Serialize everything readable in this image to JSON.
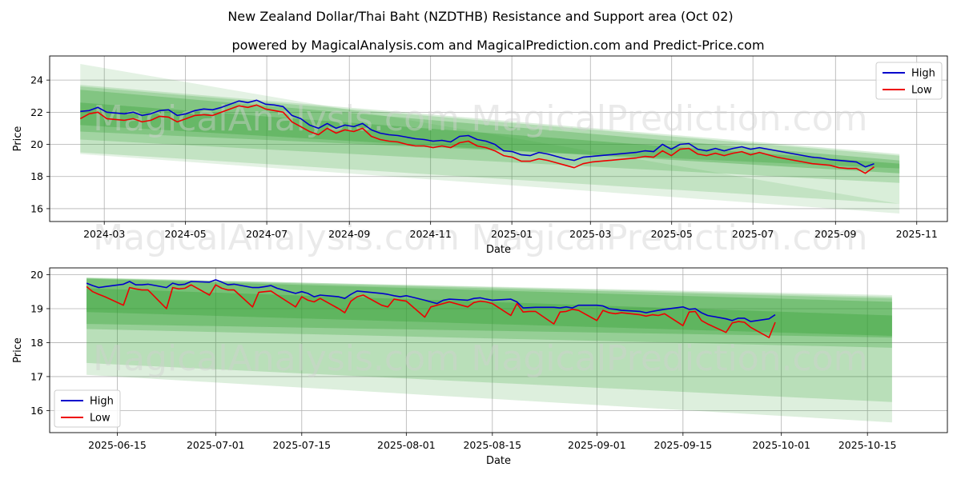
{
  "title": "New Zealand Dollar/Thai Baht (NZDTHB) Resistance and Support area (Oct 02)",
  "subtitle": "powered by MagicalAnalysis.com and MagicalPrediction.com and Predict-Price.com",
  "watermarks": [
    "MagicalAnalysis.com",
    "MagicalPrediction.com"
  ],
  "colors": {
    "high": "#0000cc",
    "low": "#ee0000",
    "band": "#2e9e2e",
    "grid": "#b0b0b0",
    "watermark": "#d0d0d0"
  },
  "chart_data": [
    {
      "type": "line",
      "name": "full-range",
      "xlabel": "Date",
      "ylabel": "Price",
      "x_range": [
        "2024-01-20",
        "2025-11-24"
      ],
      "ylim": [
        15.2,
        25.5
      ],
      "x_ticks": [
        "2024-03",
        "2024-05",
        "2024-07",
        "2024-09",
        "2024-11",
        "2025-01",
        "2025-03",
        "2025-05",
        "2025-07",
        "2025-09",
        "2025-11"
      ],
      "x_tick_dates": [
        "2024-03-01",
        "2024-05-01",
        "2024-07-01",
        "2024-09-01",
        "2024-11-01",
        "2025-01-01",
        "2025-03-01",
        "2025-05-01",
        "2025-07-01",
        "2025-09-01",
        "2025-11-01"
      ],
      "y_ticks": [
        "16",
        "18",
        "20",
        "22",
        "24"
      ],
      "y_tick_values": [
        16,
        18,
        20,
        22,
        24
      ],
      "legend": {
        "position": "top-right",
        "entries": [
          "High",
          "Low"
        ]
      },
      "bands_date_range": [
        "2024-02-12",
        "2025-10-19"
      ],
      "bands": [
        {
          "upper": [
            25.0,
            16.3
          ],
          "lower": [
            19.4,
            15.7
          ],
          "opacity": 0.13
        },
        {
          "upper": [
            23.7,
            19.4
          ],
          "lower": [
            19.5,
            16.3
          ],
          "opacity": 0.18
        },
        {
          "upper": [
            23.6,
            19.3
          ],
          "lower": [
            20.3,
            17.6
          ],
          "opacity": 0.22
        },
        {
          "upper": [
            23.4,
            19.0
          ],
          "lower": [
            20.8,
            18.5
          ],
          "opacity": 0.28
        },
        {
          "upper": [
            22.6,
            18.8
          ],
          "lower": [
            21.2,
            18.2
          ],
          "opacity": 0.32
        }
      ],
      "series_date_range": [
        "2024-02-12",
        "2025-09-30"
      ],
      "series": [
        {
          "name": "High",
          "values": [
            22.05,
            22.1,
            22.3,
            22.0,
            21.95,
            21.9,
            22.0,
            21.8,
            21.9,
            22.1,
            22.15,
            21.8,
            21.9,
            22.1,
            22.2,
            22.15,
            22.3,
            22.5,
            22.7,
            22.6,
            22.75,
            22.5,
            22.45,
            22.35,
            21.8,
            21.6,
            21.2,
            21.0,
            21.3,
            21.0,
            21.2,
            21.1,
            21.3,
            20.9,
            20.7,
            20.6,
            20.55,
            20.45,
            20.35,
            20.3,
            20.2,
            20.25,
            20.15,
            20.5,
            20.55,
            20.3,
            20.2,
            20.0,
            19.6,
            19.55,
            19.35,
            19.3,
            19.5,
            19.4,
            19.25,
            19.1,
            19.0,
            19.2,
            19.25,
            19.3,
            19.35,
            19.4,
            19.45,
            19.5,
            19.6,
            19.55,
            20.0,
            19.7,
            20.0,
            20.05,
            19.7,
            19.6,
            19.75,
            19.6,
            19.75,
            19.85,
            19.7,
            19.8,
            19.7,
            19.6,
            19.5,
            19.4,
            19.3,
            19.2,
            19.15,
            19.05,
            19.0,
            18.95,
            18.9,
            18.6,
            18.8
          ]
        },
        {
          "name": "Low",
          "values": [
            21.6,
            21.9,
            22.0,
            21.6,
            21.55,
            21.5,
            21.6,
            21.4,
            21.5,
            21.75,
            21.7,
            21.4,
            21.6,
            21.8,
            21.85,
            21.8,
            22.0,
            22.2,
            22.4,
            22.3,
            22.45,
            22.2,
            22.1,
            22.0,
            21.4,
            21.1,
            20.8,
            20.6,
            21.0,
            20.7,
            20.9,
            20.8,
            21.0,
            20.5,
            20.3,
            20.2,
            20.15,
            20.0,
            19.9,
            19.9,
            19.8,
            19.9,
            19.8,
            20.1,
            20.2,
            19.9,
            19.8,
            19.6,
            19.3,
            19.2,
            18.95,
            18.95,
            19.1,
            19.0,
            18.85,
            18.7,
            18.55,
            18.8,
            18.9,
            18.95,
            19.0,
            19.05,
            19.1,
            19.15,
            19.25,
            19.2,
            19.6,
            19.3,
            19.7,
            19.75,
            19.4,
            19.3,
            19.45,
            19.3,
            19.45,
            19.55,
            19.35,
            19.5,
            19.35,
            19.2,
            19.1,
            19.0,
            18.9,
            18.8,
            18.75,
            18.7,
            18.55,
            18.5,
            18.5,
            18.2,
            18.6
          ]
        }
      ]
    },
    {
      "type": "line",
      "name": "zoomed",
      "xlabel": "Date",
      "ylabel": "Price",
      "x_range": [
        "2025-06-04",
        "2025-10-28"
      ],
      "ylim": [
        15.35,
        20.2
      ],
      "x_ticks": [
        "2025-06-15",
        "2025-07-01",
        "2025-07-15",
        "2025-08-01",
        "2025-08-15",
        "2025-09-01",
        "2025-09-15",
        "2025-10-01",
        "2025-10-15"
      ],
      "x_tick_dates": [
        "2025-06-15",
        "2025-07-01",
        "2025-07-15",
        "2025-08-01",
        "2025-08-15",
        "2025-09-01",
        "2025-09-15",
        "2025-10-01",
        "2025-10-15"
      ],
      "y_ticks": [
        "16",
        "17",
        "18",
        "19",
        "20"
      ],
      "y_tick_values": [
        16,
        17,
        18,
        19,
        20
      ],
      "legend": {
        "position": "bottom-left",
        "entries": [
          "High",
          "Low"
        ]
      },
      "bands_date_range": [
        "2025-06-10",
        "2025-10-19"
      ],
      "bands": [
        {
          "upper": [
            19.9,
            19.4
          ],
          "lower": [
            17.05,
            15.65
          ],
          "opacity": 0.16
        },
        {
          "upper": [
            19.92,
            19.35
          ],
          "lower": [
            17.4,
            16.25
          ],
          "opacity": 0.2
        },
        {
          "upper": [
            19.9,
            19.3
          ],
          "lower": [
            18.4,
            17.85
          ],
          "opacity": 0.25
        },
        {
          "upper": [
            19.88,
            19.2
          ],
          "lower": [
            18.55,
            18.15
          ],
          "opacity": 0.3
        },
        {
          "upper": [
            19.6,
            18.8
          ],
          "lower": [
            18.9,
            18.2
          ],
          "opacity": 0.32
        }
      ],
      "series": [
        {
          "name": "High",
          "dates": [
            "2025-06-10",
            "2025-06-11",
            "2025-06-12",
            "2025-06-13",
            "2025-06-16",
            "2025-06-17",
            "2025-06-18",
            "2025-06-19",
            "2025-06-20",
            "2025-06-23",
            "2025-06-24",
            "2025-06-25",
            "2025-06-26",
            "2025-06-27",
            "2025-06-30",
            "2025-07-01",
            "2025-07-02",
            "2025-07-03",
            "2025-07-04",
            "2025-07-07",
            "2025-07-08",
            "2025-07-09",
            "2025-07-10",
            "2025-07-11",
            "2025-07-14",
            "2025-07-15",
            "2025-07-16",
            "2025-07-17",
            "2025-07-18",
            "2025-07-21",
            "2025-07-22",
            "2025-07-23",
            "2025-07-24",
            "2025-07-25",
            "2025-07-28",
            "2025-07-29",
            "2025-07-30",
            "2025-07-31",
            "2025-08-01",
            "2025-08-04",
            "2025-08-05",
            "2025-08-06",
            "2025-08-07",
            "2025-08-08",
            "2025-08-11",
            "2025-08-12",
            "2025-08-13",
            "2025-08-14",
            "2025-08-15",
            "2025-08-18",
            "2025-08-19",
            "2025-08-20",
            "2025-08-21",
            "2025-08-22",
            "2025-08-25",
            "2025-08-26",
            "2025-08-27",
            "2025-08-28",
            "2025-08-29",
            "2025-09-01",
            "2025-09-02",
            "2025-09-03",
            "2025-09-04",
            "2025-09-05",
            "2025-09-08",
            "2025-09-09",
            "2025-09-10",
            "2025-09-11",
            "2025-09-12",
            "2025-09-15",
            "2025-09-16",
            "2025-09-17",
            "2025-09-18",
            "2025-09-19",
            "2025-09-22",
            "2025-09-23",
            "2025-09-24",
            "2025-09-25",
            "2025-09-26",
            "2025-09-29",
            "2025-09-30"
          ],
          "values": [
            19.75,
            19.68,
            19.62,
            19.65,
            19.72,
            19.8,
            19.7,
            19.7,
            19.72,
            19.62,
            19.75,
            19.7,
            19.72,
            19.8,
            19.78,
            19.85,
            19.78,
            19.7,
            19.72,
            19.62,
            19.62,
            19.65,
            19.68,
            19.6,
            19.45,
            19.5,
            19.45,
            19.35,
            19.4,
            19.35,
            19.3,
            19.42,
            19.52,
            19.5,
            19.45,
            19.42,
            19.38,
            19.35,
            19.38,
            19.25,
            19.2,
            19.15,
            19.25,
            19.28,
            19.25,
            19.3,
            19.32,
            19.28,
            19.25,
            19.28,
            19.2,
            19.02,
            19.03,
            19.04,
            19.04,
            19.02,
            19.05,
            19.02,
            19.1,
            19.1,
            19.08,
            19.0,
            18.98,
            18.95,
            18.92,
            18.88,
            18.92,
            18.95,
            18.98,
            19.05,
            18.98,
            19.0,
            18.88,
            18.8,
            18.7,
            18.65,
            18.72,
            18.72,
            18.62,
            18.7,
            18.82
          ]
        },
        {
          "name": "Low",
          "dates": [
            "2025-06-10",
            "2025-06-11",
            "2025-06-12",
            "2025-06-13",
            "2025-06-16",
            "2025-06-17",
            "2025-06-18",
            "2025-06-19",
            "2025-06-20",
            "2025-06-23",
            "2025-06-24",
            "2025-06-25",
            "2025-06-26",
            "2025-06-27",
            "2025-06-30",
            "2025-07-01",
            "2025-07-02",
            "2025-07-03",
            "2025-07-04",
            "2025-07-07",
            "2025-07-08",
            "2025-07-09",
            "2025-07-10",
            "2025-07-11",
            "2025-07-14",
            "2025-07-15",
            "2025-07-16",
            "2025-07-17",
            "2025-07-18",
            "2025-07-21",
            "2025-07-22",
            "2025-07-23",
            "2025-07-24",
            "2025-07-25",
            "2025-07-28",
            "2025-07-29",
            "2025-07-30",
            "2025-07-31",
            "2025-08-01",
            "2025-08-04",
            "2025-08-05",
            "2025-08-06",
            "2025-08-07",
            "2025-08-08",
            "2025-08-11",
            "2025-08-12",
            "2025-08-13",
            "2025-08-14",
            "2025-08-15",
            "2025-08-18",
            "2025-08-19",
            "2025-08-20",
            "2025-08-21",
            "2025-08-22",
            "2025-08-25",
            "2025-08-26",
            "2025-08-27",
            "2025-08-28",
            "2025-08-29",
            "2025-09-01",
            "2025-09-02",
            "2025-09-03",
            "2025-09-04",
            "2025-09-05",
            "2025-09-08",
            "2025-09-09",
            "2025-09-10",
            "2025-09-11",
            "2025-09-12",
            "2025-09-15",
            "2025-09-16",
            "2025-09-17",
            "2025-09-18",
            "2025-09-19",
            "2025-09-22",
            "2025-09-23",
            "2025-09-24",
            "2025-09-25",
            "2025-09-26",
            "2025-09-29",
            "2025-09-30"
          ],
          "values": [
            19.65,
            19.5,
            19.42,
            19.35,
            19.1,
            19.62,
            19.58,
            19.55,
            19.55,
            19.0,
            19.62,
            19.58,
            19.6,
            19.7,
            19.4,
            19.7,
            19.6,
            19.55,
            19.55,
            19.05,
            19.48,
            19.5,
            19.52,
            19.4,
            19.05,
            19.35,
            19.25,
            19.2,
            19.3,
            19.0,
            18.88,
            19.22,
            19.35,
            19.4,
            19.1,
            19.05,
            19.28,
            19.25,
            19.22,
            18.75,
            19.05,
            19.1,
            19.15,
            19.2,
            19.05,
            19.18,
            19.22,
            19.2,
            19.15,
            18.8,
            19.15,
            18.9,
            18.92,
            18.92,
            18.55,
            18.9,
            18.92,
            18.98,
            18.95,
            18.65,
            18.95,
            18.88,
            18.85,
            18.88,
            18.82,
            18.78,
            18.82,
            18.8,
            18.85,
            18.5,
            18.9,
            18.92,
            18.65,
            18.55,
            18.3,
            18.58,
            18.62,
            18.6,
            18.45,
            18.15,
            18.6
          ]
        }
      ]
    }
  ]
}
